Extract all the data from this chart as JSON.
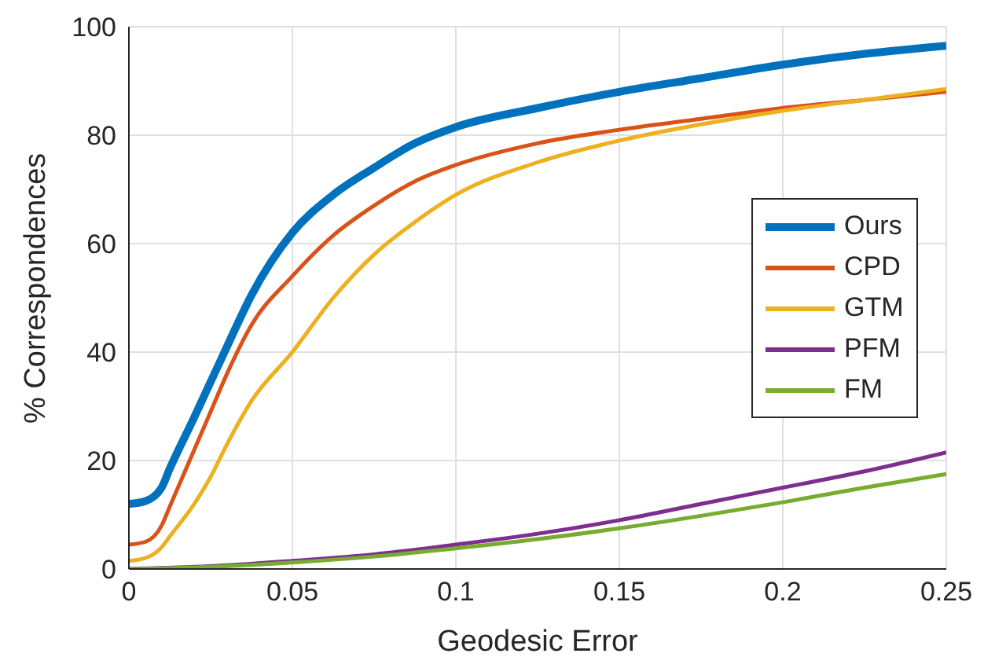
{
  "chart_data": {
    "type": "line",
    "xlabel": "Geodesic Error",
    "ylabel": "% Correspondences",
    "x": [
      0,
      0.005,
      0.01,
      0.0125,
      0.02,
      0.025,
      0.03,
      0.0375,
      0.05,
      0.0625,
      0.075,
      0.0875,
      0.1,
      0.125,
      0.15,
      0.175,
      0.2,
      0.225,
      0.25
    ],
    "series": [
      {
        "name": "Ours",
        "color": "#0072bd",
        "values": [
          12,
          12.5,
          15,
          18.5,
          28,
          34.5,
          41,
          50.5,
          62,
          69,
          74,
          78.5,
          81.5,
          85,
          88,
          90.5,
          93,
          95,
          96.5
        ]
      },
      {
        "name": "CPD",
        "color": "#d95319",
        "values": [
          4.5,
          5,
          8,
          11.5,
          22,
          29,
          36,
          45,
          54,
          61.5,
          67,
          71.5,
          74.5,
          78.5,
          81,
          83,
          85,
          86.5,
          88
        ]
      },
      {
        "name": "GTM",
        "color": "#edb120",
        "values": [
          1.5,
          2,
          4,
          6,
          12,
          17,
          23,
          31,
          40,
          50,
          58,
          64,
          69,
          75,
          79,
          82,
          84.5,
          86.5,
          88.5
        ]
      },
      {
        "name": "PFM",
        "color": "#7e2f8e",
        "x": [
          0,
          0.025,
          0.05,
          0.075,
          0.1,
          0.125,
          0.15,
          0.175,
          0.2,
          0.225,
          0.25
        ],
        "values": [
          0,
          0.5,
          1.5,
          2.7,
          4.5,
          6.5,
          9,
          12,
          15,
          18,
          21.5
        ]
      },
      {
        "name": "FM",
        "color": "#77ac30",
        "x": [
          0,
          0.025,
          0.05,
          0.075,
          0.1,
          0.125,
          0.15,
          0.175,
          0.2,
          0.225,
          0.25
        ],
        "values": [
          0,
          0.4,
          1.2,
          2.3,
          3.8,
          5.5,
          7.5,
          9.8,
          12.3,
          15,
          17.5
        ]
      }
    ],
    "xlim": [
      0,
      0.25
    ],
    "xticks": [
      0,
      0.05,
      0.1,
      0.15,
      0.2,
      0.25
    ],
    "ylim": [
      0,
      100
    ],
    "yticks": [
      0,
      20,
      40,
      60,
      80,
      100
    ],
    "grid": true,
    "legend": "right",
    "marker": "none",
    "line_style": "solid"
  }
}
